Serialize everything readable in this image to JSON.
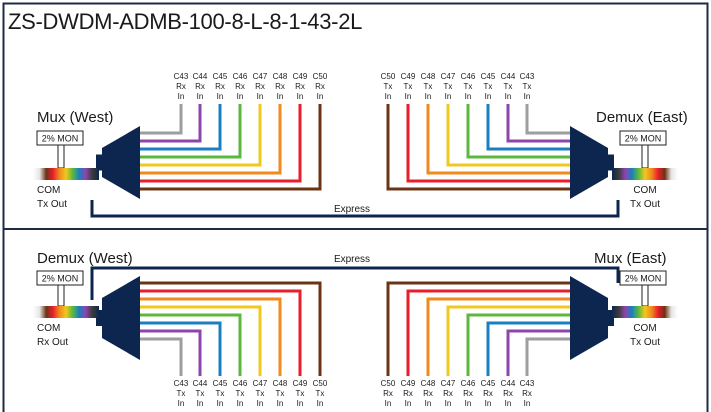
{
  "title": "ZS-DWDM-ADMB-100-8-L-8-1-43-2L",
  "colors": {
    "frame": "#1f2a44",
    "mux_body": "#0d2650",
    "express_line": "#0d2650",
    "channels": [
      "#9e9e9e",
      "#8e44ad",
      "#1a7fc0",
      "#5cb83c",
      "#f0c81e",
      "#f08a1c",
      "#e81e2b",
      "#6b3414"
    ]
  },
  "top_section": {
    "left_block": {
      "label": "Mux (West)",
      "monitor": "2% MON",
      "com_line1": "COM",
      "com_line2": "Tx Out"
    },
    "right_block": {
      "label": "Demux (East)",
      "monitor": "2% MON",
      "com_line1": "COM",
      "com_line2": "Tx Out"
    },
    "express_label": "Express",
    "left_ports": [
      {
        "ch": "C43",
        "dir": "Rx",
        "io": "In"
      },
      {
        "ch": "C44",
        "dir": "Rx",
        "io": "In"
      },
      {
        "ch": "C45",
        "dir": "Rx",
        "io": "In"
      },
      {
        "ch": "C46",
        "dir": "Rx",
        "io": "In"
      },
      {
        "ch": "C47",
        "dir": "Rx",
        "io": "In"
      },
      {
        "ch": "C48",
        "dir": "Rx",
        "io": "In"
      },
      {
        "ch": "C49",
        "dir": "Rx",
        "io": "In"
      },
      {
        "ch": "C50",
        "dir": "Rx",
        "io": "In"
      }
    ],
    "right_ports": [
      {
        "ch": "C50",
        "dir": "Tx",
        "io": "In"
      },
      {
        "ch": "C49",
        "dir": "Tx",
        "io": "In"
      },
      {
        "ch": "C48",
        "dir": "Tx",
        "io": "In"
      },
      {
        "ch": "C47",
        "dir": "Tx",
        "io": "In"
      },
      {
        "ch": "C46",
        "dir": "Tx",
        "io": "In"
      },
      {
        "ch": "C45",
        "dir": "Tx",
        "io": "In"
      },
      {
        "ch": "C44",
        "dir": "Tx",
        "io": "In"
      },
      {
        "ch": "C43",
        "dir": "Tx",
        "io": "In"
      }
    ]
  },
  "bottom_section": {
    "left_block": {
      "label": "Demux (West)",
      "monitor": "2% MON",
      "com_line1": "COM",
      "com_line2": "Rx Out"
    },
    "right_block": {
      "label": "Mux (East)",
      "monitor": "2% MON",
      "com_line1": "COM",
      "com_line2": "Tx Out"
    },
    "express_label": "Express",
    "left_ports": [
      {
        "ch": "C43",
        "dir": "Tx",
        "io": "In"
      },
      {
        "ch": "C44",
        "dir": "Tx",
        "io": "In"
      },
      {
        "ch": "C45",
        "dir": "Tx",
        "io": "In"
      },
      {
        "ch": "C46",
        "dir": "Tx",
        "io": "In"
      },
      {
        "ch": "C47",
        "dir": "Tx",
        "io": "In"
      },
      {
        "ch": "C48",
        "dir": "Tx",
        "io": "In"
      },
      {
        "ch": "C49",
        "dir": "Tx",
        "io": "In"
      },
      {
        "ch": "C50",
        "dir": "Tx",
        "io": "In"
      }
    ],
    "right_ports": [
      {
        "ch": "C50",
        "dir": "Rx",
        "io": "In"
      },
      {
        "ch": "C49",
        "dir": "Rx",
        "io": "In"
      },
      {
        "ch": "C48",
        "dir": "Rx",
        "io": "In"
      },
      {
        "ch": "C47",
        "dir": "Rx",
        "io": "In"
      },
      {
        "ch": "C46",
        "dir": "Rx",
        "io": "In"
      },
      {
        "ch": "C45",
        "dir": "Rx",
        "io": "In"
      },
      {
        "ch": "C44",
        "dir": "Rx",
        "io": "In"
      },
      {
        "ch": "C43",
        "dir": "Rx",
        "io": "In"
      }
    ]
  }
}
